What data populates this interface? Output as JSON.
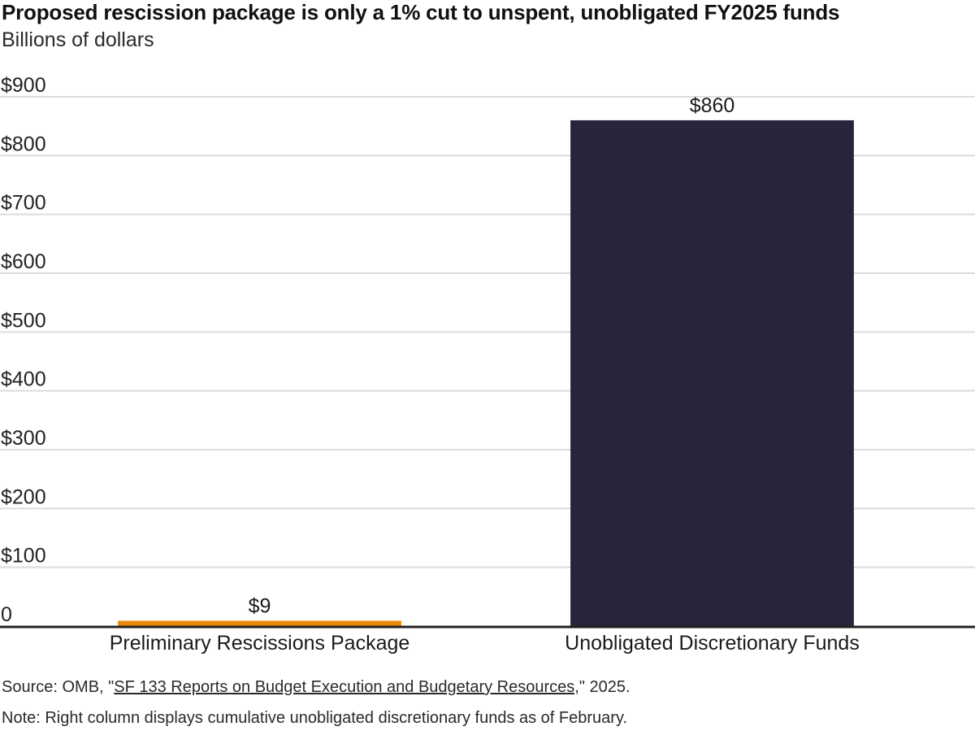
{
  "title": "Proposed rescission package is only a 1% cut to unspent, unobligated FY2025 funds",
  "subtitle": "Billions of dollars",
  "footer": {
    "source_prefix": "Source: OMB, \"",
    "source_link": "SF 133 Reports on Budget Execution and Budgetary Resources,",
    "source_suffix": "\" 2025.",
    "note": "Note: Right column displays cumulative unobligated discretionary funds as of February."
  },
  "chart_data": {
    "type": "bar",
    "title": "Proposed rescission package is only a 1% cut to unspent, unobligated FY2025 funds",
    "ylabel": "Billions of dollars",
    "categories": [
      "Preliminary Rescissions Package",
      "Unobligated Discretionary Funds"
    ],
    "values": [
      9,
      860
    ],
    "value_labels": [
      "$9",
      "$860"
    ],
    "bar_colors": [
      "#e8890c",
      "#29233b"
    ],
    "ylim": [
      0,
      900
    ],
    "yticks": [
      0,
      100,
      200,
      300,
      400,
      500,
      600,
      700,
      800,
      900
    ],
    "ytick_labels": [
      "0",
      "$100",
      "$200",
      "$300",
      "$400",
      "$500",
      "$600",
      "$700",
      "$800",
      "$900"
    ],
    "grid": true
  }
}
